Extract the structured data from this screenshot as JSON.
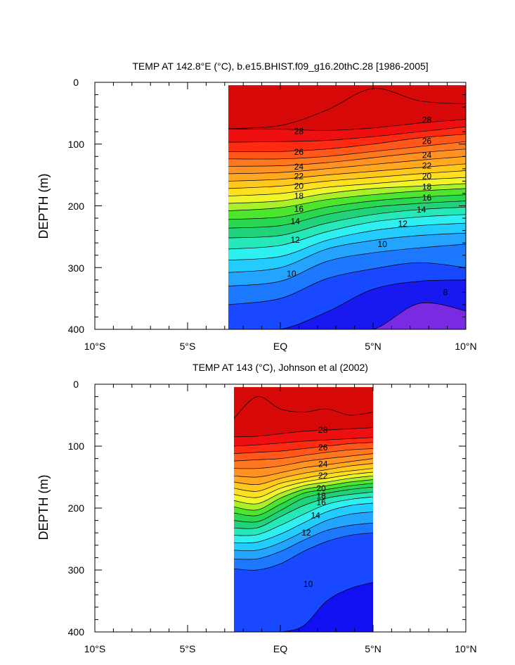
{
  "charts": [
    {
      "title": "TEMP AT 142.8°E (°C), b.e15.BHIST.f09_g16.20thC.28 [1986-2005]",
      "ylabel": "DEPTH (m)",
      "xtick_labels": [
        "10°S",
        "5°S",
        "EQ",
        "5°N",
        "10°N"
      ],
      "ytick_labels": [
        "0",
        "100",
        "200",
        "300",
        "400"
      ],
      "contour_labels": [
        "28",
        "28",
        "26",
        "26",
        "24",
        "24",
        "22",
        "22",
        "20",
        "20",
        "18",
        "18",
        "16",
        "16",
        "14",
        "14",
        "12",
        "12",
        "10",
        "10",
        "8"
      ]
    },
    {
      "title": "TEMP AT 143 (°C), Johnson et al (2002)",
      "ylabel": "DEPTH (m)",
      "xtick_labels": [
        "10°S",
        "5°S",
        "EQ",
        "5°N",
        "10°N"
      ],
      "ytick_labels": [
        "0",
        "100",
        "200",
        "300",
        "400"
      ],
      "contour_labels": [
        "28",
        "26",
        "24",
        "22",
        "20",
        "18",
        "16",
        "14",
        "12",
        "10"
      ]
    }
  ],
  "chart_data": [
    {
      "type": "contour",
      "title": "TEMP AT 142.8°E (°C), b.e15.BHIST.f09_g16.20thC.28 [1986-2005]",
      "xlabel": "",
      "ylabel": "DEPTH (m)",
      "xlim": [
        -10,
        10
      ],
      "ylim": [
        400,
        0
      ],
      "data_xrange": [
        -2.8,
        10
      ],
      "data_yrange": [
        5,
        400
      ],
      "contour_interval": 1,
      "contour_levels": [
        8,
        9,
        10,
        11,
        12,
        13,
        14,
        15,
        16,
        17,
        18,
        19,
        20,
        21,
        22,
        23,
        24,
        25,
        26,
        27,
        28,
        29
      ],
      "isotherm_depths": {
        "x": [
          -2.8,
          0,
          2.5,
          5,
          7.5,
          10
        ],
        "levels": {
          "29": [
            75,
            70,
            45,
            10,
            30,
            35
          ],
          "28": [
            76,
            76,
            78,
            74,
            66,
            60
          ],
          "27": [
            97,
            96,
            94,
            88,
            80,
            72
          ],
          "26": [
            112,
            112,
            108,
            100,
            90,
            84
          ],
          "25": [
            124,
            124,
            120,
            112,
            104,
            96
          ],
          "24": [
            136,
            135,
            130,
            122,
            114,
            108
          ],
          "23": [
            148,
            146,
            140,
            133,
            126,
            120
          ],
          "22": [
            160,
            157,
            150,
            144,
            138,
            132
          ],
          "21": [
            172,
            168,
            160,
            154,
            148,
            143
          ],
          "20": [
            184,
            180,
            170,
            164,
            158,
            154
          ],
          "19": [
            196,
            192,
            180,
            172,
            168,
            164
          ],
          "18": [
            208,
            203,
            190,
            182,
            176,
            172
          ],
          "17": [
            222,
            218,
            202,
            192,
            186,
            182
          ],
          "16": [
            236,
            232,
            214,
            202,
            196,
            192
          ],
          "15": [
            252,
            248,
            228,
            214,
            206,
            202
          ],
          "14": [
            270,
            264,
            242,
            226,
            218,
            214
          ],
          "13": [
            288,
            282,
            256,
            240,
            232,
            228
          ],
          "12": [
            308,
            300,
            270,
            256,
            248,
            244
          ],
          "11": [
            330,
            322,
            290,
            276,
            268,
            262
          ],
          "10": [
            360,
            350,
            318,
            302,
            292,
            300
          ],
          "9": [
            400,
            400,
            372,
            335,
            322,
            320
          ],
          "8": [
            400,
            400,
            400,
            400,
            358,
            370
          ]
        }
      },
      "color_bands": [
        "#7a2ae0",
        "#1818f0",
        "#1848ff",
        "#1c78ff",
        "#22a4ff",
        "#22ccff",
        "#2ef0f0",
        "#26e8b8",
        "#20d27a",
        "#2ad850",
        "#4ce62e",
        "#a8f02a",
        "#eef52a",
        "#ffe020",
        "#ffc81c",
        "#ffa820",
        "#ff9222",
        "#ff7820",
        "#ff581a",
        "#ff2a12",
        "#ee1010",
        "#d60808"
      ],
      "label_positions": [
        {
          "x": 1.0,
          "depth": 79,
          "label": "28"
        },
        {
          "x": 7.9,
          "depth": 61,
          "label": "28"
        },
        {
          "x": 1.0,
          "depth": 113,
          "label": "26"
        },
        {
          "x": 7.9,
          "depth": 95,
          "label": "26"
        },
        {
          "x": 1.0,
          "depth": 137,
          "label": "24"
        },
        {
          "x": 7.9,
          "depth": 118,
          "label": "24"
        },
        {
          "x": 1.0,
          "depth": 152,
          "label": "22"
        },
        {
          "x": 7.9,
          "depth": 135,
          "label": "22"
        },
        {
          "x": 1.0,
          "depth": 168,
          "label": "20"
        },
        {
          "x": 7.9,
          "depth": 152,
          "label": "20"
        },
        {
          "x": 1.0,
          "depth": 184,
          "label": "18"
        },
        {
          "x": 7.9,
          "depth": 169,
          "label": "18"
        },
        {
          "x": 1.0,
          "depth": 205,
          "label": "16"
        },
        {
          "x": 7.9,
          "depth": 187,
          "label": "16"
        },
        {
          "x": 0.8,
          "depth": 225,
          "label": "14"
        },
        {
          "x": 7.6,
          "depth": 206,
          "label": "14"
        },
        {
          "x": 0.8,
          "depth": 255,
          "label": "12"
        },
        {
          "x": 6.6,
          "depth": 229,
          "label": "12"
        },
        {
          "x": 0.6,
          "depth": 310,
          "label": "10"
        },
        {
          "x": 5.5,
          "depth": 262,
          "label": "10"
        },
        {
          "x": 8.9,
          "depth": 340,
          "label": "8"
        }
      ]
    },
    {
      "type": "contour",
      "title": "TEMP AT 143 (°C), Johnson et al (2002)",
      "xlabel": "",
      "ylabel": "DEPTH (m)",
      "xlim": [
        -10,
        10
      ],
      "ylim": [
        400,
        0
      ],
      "data_xrange": [
        -2.5,
        5
      ],
      "data_yrange": [
        5,
        400
      ],
      "contour_interval": 1,
      "contour_levels": [
        9,
        10,
        11,
        12,
        13,
        14,
        15,
        16,
        17,
        18,
        19,
        20,
        21,
        22,
        23,
        24,
        25,
        26,
        27,
        28,
        29
      ],
      "isotherm_depths": {
        "x": [
          -2.5,
          -1.25,
          0,
          1.25,
          2.5,
          3.75,
          5
        ],
        "levels": {
          "29": [
            55,
            20,
            40,
            45,
            40,
            50,
            45
          ],
          "28": [
            85,
            84,
            80,
            76,
            74,
            72,
            70
          ],
          "27": [
            100,
            98,
            95,
            92,
            90,
            88,
            86
          ],
          "26": [
            112,
            110,
            108,
            104,
            100,
            96,
            94
          ],
          "25": [
            124,
            122,
            120,
            115,
            110,
            106,
            104
          ],
          "24": [
            136,
            136,
            132,
            125,
            120,
            116,
            112
          ],
          "23": [
            148,
            150,
            143,
            135,
            130,
            125,
            120
          ],
          "22": [
            158,
            162,
            152,
            144,
            138,
            132,
            128
          ],
          "21": [
            168,
            173,
            160,
            152,
            145,
            140,
            136
          ],
          "20": [
            178,
            183,
            168,
            158,
            152,
            146,
            142
          ],
          "19": [
            188,
            193,
            176,
            164,
            158,
            152,
            148
          ],
          "18": [
            198,
            203,
            184,
            170,
            164,
            158,
            154
          ],
          "17": [
            208,
            212,
            194,
            176,
            170,
            164,
            160
          ],
          "16": [
            220,
            222,
            204,
            184,
            176,
            170,
            166
          ],
          "15": [
            232,
            232,
            214,
            196,
            184,
            178,
            174
          ],
          "14": [
            244,
            243,
            228,
            210,
            194,
            186,
            182
          ],
          "13": [
            256,
            255,
            242,
            224,
            206,
            196,
            192
          ],
          "12": [
            268,
            268,
            256,
            238,
            220,
            210,
            206
          ],
          "11": [
            282,
            282,
            270,
            252,
            236,
            228,
            224
          ],
          "10": [
            298,
            300,
            290,
            270,
            254,
            244,
            240
          ],
          "9": [
            400,
            400,
            400,
            390,
            350,
            330,
            320
          ]
        }
      },
      "color_bands": [
        "#1010f0",
        "#1848ff",
        "#1c78ff",
        "#22a4ff",
        "#22ccff",
        "#2ef0f0",
        "#26e8b8",
        "#20d27a",
        "#2ad850",
        "#4ce62e",
        "#a8f02a",
        "#eef52a",
        "#ffe020",
        "#ffc81c",
        "#ffa820",
        "#ff9222",
        "#ff7820",
        "#ff581a",
        "#ff2a12",
        "#ee1010",
        "#d60808"
      ],
      "label_positions": [
        {
          "x": 2.3,
          "depth": 74,
          "label": "28"
        },
        {
          "x": 2.3,
          "depth": 102,
          "label": "26"
        },
        {
          "x": 2.3,
          "depth": 129,
          "label": "24"
        },
        {
          "x": 2.3,
          "depth": 148,
          "label": "22"
        },
        {
          "x": 2.2,
          "depth": 168,
          "label": "20"
        },
        {
          "x": 2.2,
          "depth": 180,
          "label": "18"
        },
        {
          "x": 2.2,
          "depth": 191,
          "label": "16"
        },
        {
          "x": 1.9,
          "depth": 212,
          "label": "14"
        },
        {
          "x": 1.4,
          "depth": 240,
          "label": "12"
        },
        {
          "x": 1.5,
          "depth": 323,
          "label": "10"
        }
      ]
    }
  ]
}
